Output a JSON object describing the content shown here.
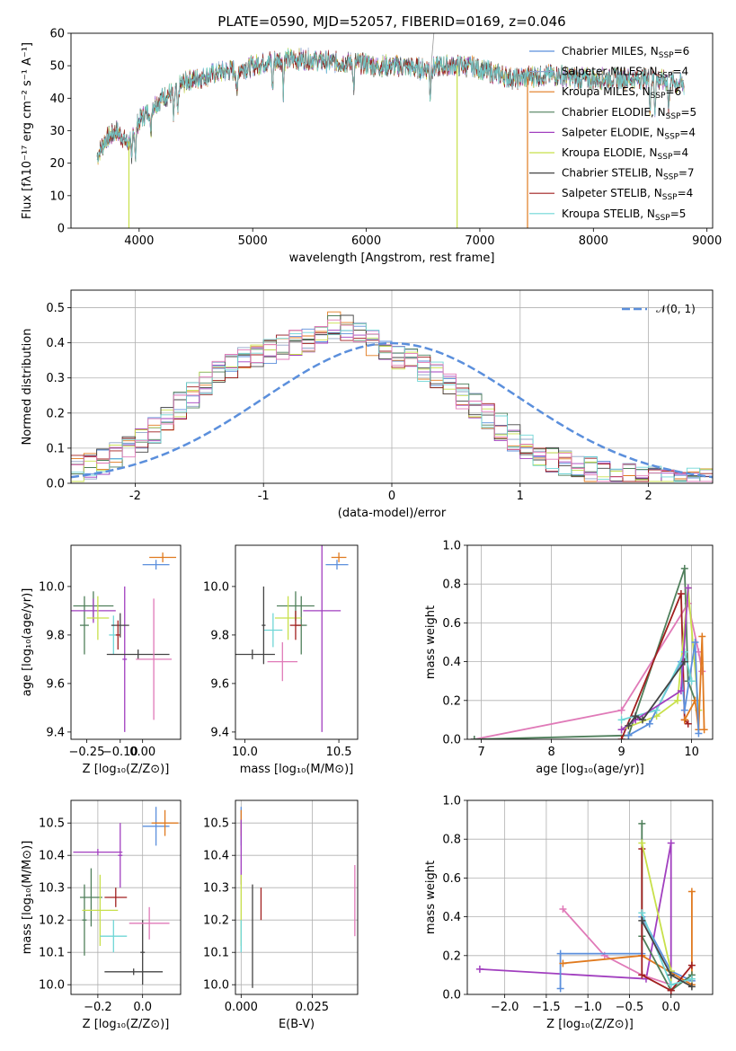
{
  "figure_title": "PLATE=0590, MJD=52057, FIBERID=0169, z=0.046",
  "colors": [
    "#5b8fdc",
    "#8fa3c7",
    "#e07a1f",
    "#4f7f5b",
    "#a13fbf",
    "#c8e04a",
    "#444444",
    "#a11f1f",
    "#6fd6d6"
  ],
  "chart_data": [
    {
      "type": "line",
      "name": "spectrum",
      "xlabel": "wavelength [Angstrom, rest frame]",
      "ylabel": "Flux [fλ10⁻¹⁷ erg cm⁻² s⁻¹ A⁻¹]",
      "xlim": [
        3400,
        9050
      ],
      "ylim": [
        0,
        60
      ],
      "xticks": [
        4000,
        5000,
        6000,
        7000,
        8000,
        9000
      ],
      "yticks": [
        0,
        10,
        20,
        30,
        40,
        50,
        60
      ],
      "continuum_x": [
        3630,
        3700,
        3800,
        3900,
        4000,
        4100,
        4200,
        4300,
        4400,
        4500,
        4700,
        4900,
        5100,
        5300,
        5500,
        5700,
        5900,
        6100,
        6300,
        6500,
        6700,
        6900,
        7100,
        7300,
        7500,
        7700,
        7900,
        8100,
        8300,
        8500,
        8700,
        8800
      ],
      "continuum_y": [
        22,
        27,
        30,
        26,
        33,
        37,
        40,
        42,
        45,
        46,
        48,
        49,
        51,
        52,
        52,
        51,
        51,
        50,
        50,
        49,
        50,
        50,
        48,
        46,
        47,
        47,
        46,
        46,
        46,
        46,
        45,
        44
      ],
      "legend": [
        {
          "label": "Chabrier MILES, N",
          "sub": "SSP",
          "n": "=6",
          "color": "#5b8fdc"
        },
        {
          "label": "Salpeter MILES, N",
          "sub": "SSP",
          "n": "=4",
          "color": "#8fa3c7"
        },
        {
          "label": "Kroupa MILES, N",
          "sub": "SSP",
          "n": "=6",
          "color": "#e07a1f"
        },
        {
          "label": "Chabrier ELODIE, N",
          "sub": "SSP",
          "n": "=5",
          "color": "#4f7f5b"
        },
        {
          "label": "Salpeter ELODIE, N",
          "sub": "SSP",
          "n": "=4",
          "color": "#a13fbf"
        },
        {
          "label": "Kroupa ELODIE, N",
          "sub": "SSP",
          "n": "=4",
          "color": "#c8e04a"
        },
        {
          "label": "Chabrier STELIB, N",
          "sub": "SSP",
          "n": "=7",
          "color": "#444444"
        },
        {
          "label": "Salpeter STELIB, N",
          "sub": "SSP",
          "n": "=4",
          "color": "#a11f1f"
        },
        {
          "label": "Kroupa STELIB, N",
          "sub": "SSP",
          "n": "=5",
          "color": "#6fd6d6"
        }
      ]
    },
    {
      "type": "histogram",
      "name": "residuals",
      "xlabel": "(data-model)/error",
      "ylabel": "Normed distribution",
      "xlim": [
        -2.5,
        2.5
      ],
      "ylim": [
        0,
        0.55
      ],
      "xticks": [
        -2,
        -1,
        0,
        1,
        2
      ],
      "yticks": [
        0.0,
        0.1,
        0.2,
        0.3,
        0.4,
        0.5
      ],
      "bin_edges_start": -2.5,
      "bin_width": 0.1,
      "reference_density": [
        0.04,
        0.05,
        0.06,
        0.08,
        0.1,
        0.12,
        0.15,
        0.18,
        0.22,
        0.25,
        0.28,
        0.31,
        0.33,
        0.35,
        0.37,
        0.38,
        0.39,
        0.4,
        0.41,
        0.43,
        0.45,
        0.44,
        0.42,
        0.4,
        0.38,
        0.36,
        0.35,
        0.33,
        0.31,
        0.28,
        0.25,
        0.22,
        0.19,
        0.16,
        0.13,
        0.11,
        0.09,
        0.07,
        0.06,
        0.05,
        0.04,
        0.03,
        0.03,
        0.02,
        0.02,
        0.01,
        0.01,
        0.01,
        0.01,
        0.01
      ],
      "gaussian_label": "𝒩(0, 1)",
      "gaussian_color": "#5b8fdc"
    },
    {
      "type": "scatter",
      "name": "age_vs_Z",
      "xlabel": "Z [log₁₀(Z/Z⊙)]",
      "ylabel": "age  [log₁₀(age/yr)]",
      "xlim": [
        -0.32,
        0.17
      ],
      "ylim": [
        9.37,
        10.17
      ],
      "xticks": [
        -0.25,
        -0.1,
        0.0
      ],
      "xtick_labels": [
        "−0.25",
        "−0.10",
        "0.00"
      ],
      "yticks": [
        9.4,
        9.6,
        9.8,
        10.0
      ],
      "points": [
        {
          "x": 0.06,
          "y": 10.09,
          "ex": 0.06,
          "ey": 0.02,
          "color": "#5b8fdc"
        },
        {
          "x": 0.09,
          "y": 10.12,
          "ex": 0.06,
          "ey": 0.02,
          "color": "#e07a1f"
        },
        {
          "x": -0.22,
          "y": 9.92,
          "ex": 0.09,
          "ey": 0.06,
          "color": "#4f7f5b"
        },
        {
          "x": -0.26,
          "y": 9.84,
          "ex": 0.02,
          "ey": 0.12,
          "color": "#4f7f5b"
        },
        {
          "x": -0.22,
          "y": 9.9,
          "ex": 0.1,
          "ey": 0.05,
          "color": "#a13fbf"
        },
        {
          "x": -0.08,
          "y": 9.7,
          "ex": 0.01,
          "ey": 0.3,
          "color": "#a13fbf"
        },
        {
          "x": -0.2,
          "y": 9.87,
          "ex": 0.05,
          "ey": 0.09,
          "color": "#c8e04a"
        },
        {
          "x": -0.13,
          "y": 9.8,
          "ex": 0.02,
          "ey": 0.08,
          "color": "#6fd6d6"
        },
        {
          "x": -0.1,
          "y": 9.84,
          "ex": 0.04,
          "ey": 0.05,
          "color": "#444444"
        },
        {
          "x": -0.02,
          "y": 9.72,
          "ex": 0.14,
          "ey": 0.02,
          "color": "#444444"
        },
        {
          "x": -0.11,
          "y": 9.8,
          "ex": 0.01,
          "ey": 0.06,
          "color": "#a11f1f"
        },
        {
          "x": 0.05,
          "y": 9.7,
          "ex": 0.08,
          "ey": 0.25,
          "color": "#e07ab8"
        }
      ]
    },
    {
      "type": "scatter",
      "name": "age_vs_mass",
      "xlabel": "mass [log₁₀(M/M⊙)]",
      "xlim": [
        9.95,
        10.6
      ],
      "ylim": [
        9.37,
        10.17
      ],
      "xticks": [
        10.0,
        10.5
      ],
      "xtick_labels": [
        "10.0",
        "10.5"
      ],
      "yticks": [
        9.4,
        9.6,
        9.8,
        10.0
      ],
      "points": [
        {
          "x": 10.49,
          "y": 10.09,
          "ex": 0.06,
          "ey": 0.02,
          "color": "#5b8fdc"
        },
        {
          "x": 10.5,
          "y": 10.12,
          "ex": 0.04,
          "ey": 0.02,
          "color": "#e07a1f"
        },
        {
          "x": 10.27,
          "y": 9.92,
          "ex": 0.1,
          "ey": 0.06,
          "color": "#4f7f5b"
        },
        {
          "x": 10.3,
          "y": 9.84,
          "ex": 0.03,
          "ey": 0.12,
          "color": "#4f7f5b"
        },
        {
          "x": 10.41,
          "y": 9.9,
          "ex": 0.1,
          "ey": 0.5,
          "color": "#a13fbf"
        },
        {
          "x": 10.23,
          "y": 9.87,
          "ex": 0.07,
          "ey": 0.09,
          "color": "#c8e04a"
        },
        {
          "x": 10.15,
          "y": 9.82,
          "ex": 0.05,
          "ey": 0.07,
          "color": "#6fd6d6"
        },
        {
          "x": 10.1,
          "y": 9.84,
          "ex": 0.01,
          "ey": 0.16,
          "color": "#444444"
        },
        {
          "x": 10.04,
          "y": 9.72,
          "ex": 0.12,
          "ey": 0.02,
          "color": "#444444"
        },
        {
          "x": 10.27,
          "y": 9.84,
          "ex": 0.03,
          "ey": 0.06,
          "color": "#a11f1f"
        },
        {
          "x": 10.2,
          "y": 9.69,
          "ex": 0.08,
          "ey": 0.08,
          "color": "#e07ab8"
        }
      ]
    },
    {
      "type": "line",
      "name": "weight_vs_age",
      "xlabel": "age  [log₁₀(age/yr)]",
      "ylabel": "mass weight",
      "xlim": [
        6.8,
        10.3
      ],
      "ylim": [
        0,
        1
      ],
      "xticks": [
        7,
        8,
        9,
        10
      ],
      "yticks": [
        0.0,
        0.2,
        0.4,
        0.6,
        0.8,
        1.0
      ],
      "series": [
        {
          "color": "#e07ab8",
          "x": [
            6.9,
            9.0,
            9.95,
            10.1,
            10.15
          ],
          "y": [
            0.0,
            0.15,
            0.7,
            0.45,
            0.35
          ]
        },
        {
          "color": "#4f7f5b",
          "x": [
            6.9,
            9.1,
            9.9,
            9.95,
            10.05
          ],
          "y": [
            0.0,
            0.02,
            0.88,
            0.3,
            0.2
          ]
        },
        {
          "color": "#a11f1f",
          "x": [
            9.0,
            9.85,
            9.9,
            9.95
          ],
          "y": [
            0.0,
            0.75,
            0.1,
            0.08
          ]
        },
        {
          "color": "#c8e04a",
          "x": [
            9.0,
            9.5,
            9.8,
            9.95,
            10.1
          ],
          "y": [
            0.05,
            0.12,
            0.2,
            0.78,
            0.15
          ]
        },
        {
          "color": "#e07a1f",
          "x": [
            9.9,
            10.05,
            10.1,
            10.15,
            10.18
          ],
          "y": [
            0.1,
            0.2,
            0.05,
            0.53,
            0.05
          ]
        },
        {
          "color": "#5b8fdc",
          "x": [
            9.1,
            9.4,
            9.85,
            9.9,
            10.05,
            10.1
          ],
          "y": [
            0.02,
            0.08,
            0.4,
            0.15,
            0.5,
            0.03
          ]
        },
        {
          "color": "#6fd6d6",
          "x": [
            9.0,
            9.5,
            9.9,
            10.0
          ],
          "y": [
            0.1,
            0.15,
            0.45,
            0.3
          ]
        },
        {
          "color": "#a13fbf",
          "x": [
            9.0,
            9.2,
            9.85,
            9.95
          ],
          "y": [
            0.05,
            0.1,
            0.25,
            0.78
          ]
        },
        {
          "color": "#444444",
          "x": [
            9.1,
            9.2,
            9.3,
            9.9
          ],
          "y": [
            0.07,
            0.12,
            0.1,
            0.4
          ]
        }
      ]
    },
    {
      "type": "scatter",
      "name": "mass_vs_Z",
      "xlabel": "Z [log₁₀(Z/Z⊙)]",
      "ylabel": "mass [log₁₀(M/M⊙)]",
      "xlim": [
        -0.32,
        0.17
      ],
      "ylim": [
        9.97,
        10.57
      ],
      "xticks": [
        -0.2,
        0.0
      ],
      "xtick_labels": [
        "−0.2",
        "0.0"
      ],
      "yticks": [
        10.0,
        10.1,
        10.2,
        10.3,
        10.4,
        10.5
      ],
      "points": [
        {
          "x": 0.06,
          "y": 10.49,
          "ex": 0.06,
          "ey": 0.06,
          "color": "#5b8fdc"
        },
        {
          "x": 0.1,
          "y": 10.5,
          "ex": 0.06,
          "ey": 0.04,
          "color": "#e07a1f"
        },
        {
          "x": -0.23,
          "y": 10.27,
          "ex": 0.05,
          "ey": 0.09,
          "color": "#4f7f5b"
        },
        {
          "x": -0.26,
          "y": 10.2,
          "ex": 0.01,
          "ey": 0.11,
          "color": "#4f7f5b"
        },
        {
          "x": -0.2,
          "y": 10.41,
          "ex": 0.11,
          "ey": 0.01,
          "color": "#a13fbf"
        },
        {
          "x": -0.1,
          "y": 10.4,
          "ex": 0.01,
          "ey": 0.1,
          "color": "#a13fbf"
        },
        {
          "x": -0.19,
          "y": 10.23,
          "ex": 0.08,
          "ey": 0.11,
          "color": "#c8e04a"
        },
        {
          "x": -0.13,
          "y": 10.15,
          "ex": 0.06,
          "ey": 0.05,
          "color": "#6fd6d6"
        },
        {
          "x": -0.04,
          "y": 10.04,
          "ex": 0.13,
          "ey": 0.01,
          "color": "#444444"
        },
        {
          "x": 0.0,
          "y": 10.1,
          "ex": 0.01,
          "ey": 0.1,
          "color": "#444444"
        },
        {
          "x": -0.12,
          "y": 10.27,
          "ex": 0.05,
          "ey": 0.03,
          "color": "#a11f1f"
        },
        {
          "x": 0.03,
          "y": 10.19,
          "ex": 0.09,
          "ey": 0.05,
          "color": "#e07ab8"
        }
      ]
    },
    {
      "type": "scatter",
      "name": "mass_vs_EBV",
      "xlabel": "E(B-V)",
      "xlim": [
        -0.002,
        0.041
      ],
      "ylim": [
        9.97,
        10.57
      ],
      "xticks": [
        0.0,
        0.025
      ],
      "xtick_labels": [
        "0.000",
        "0.025"
      ],
      "yticks": [
        10.0,
        10.1,
        10.2,
        10.3,
        10.4,
        10.5
      ],
      "points": [
        {
          "x": 0.0,
          "y": 10.49,
          "ex": 0.0,
          "ey": 0.06,
          "color": "#5b8fdc"
        },
        {
          "x": 0.0,
          "y": 10.5,
          "ex": 0.0,
          "ey": 0.04,
          "color": "#e07a1f"
        },
        {
          "x": 0.0,
          "y": 10.41,
          "ex": 0.0,
          "ey": 0.1,
          "color": "#a13fbf"
        },
        {
          "x": 0.0,
          "y": 10.23,
          "ex": 0.0,
          "ey": 0.11,
          "color": "#c8e04a"
        },
        {
          "x": 0.0,
          "y": 10.15,
          "ex": 0.0,
          "ey": 0.05,
          "color": "#6fd6d6"
        },
        {
          "x": 0.004,
          "y": 10.15,
          "ex": 0.0,
          "ey": 0.16,
          "color": "#444444"
        },
        {
          "x": 0.007,
          "y": 10.25,
          "ex": 0.0,
          "ey": 0.05,
          "color": "#a11f1f"
        },
        {
          "x": 0.04,
          "y": 10.26,
          "ex": 0.0,
          "ey": 0.11,
          "color": "#e07ab8"
        }
      ]
    },
    {
      "type": "line",
      "name": "weight_vs_Z",
      "xlabel": "Z [log₁₀(Z/Z⊙)]",
      "ylabel": "mass weight",
      "xlim": [
        -2.45,
        0.5
      ],
      "ylim": [
        0,
        1
      ],
      "xticks": [
        -2.0,
        -1.5,
        -1.0,
        -0.5,
        0.0
      ],
      "xtick_labels": [
        "−2.0",
        "−1.5",
        "−1.0",
        "−0.5",
        "0.0"
      ],
      "yticks": [
        0.0,
        0.2,
        0.4,
        0.6,
        0.8,
        1.0
      ],
      "series": [
        {
          "color": "#a13fbf",
          "x": [
            -2.3,
            -0.3,
            0.0,
            0.0
          ],
          "y": [
            0.13,
            0.08,
            0.78,
            0.02
          ]
        },
        {
          "color": "#e07ab8",
          "x": [
            -1.3,
            -0.8,
            -0.35,
            0.0
          ],
          "y": [
            0.44,
            0.2,
            0.1,
            0.05
          ]
        },
        {
          "color": "#5b8fdc",
          "x": [
            -1.33,
            -1.33,
            -0.35,
            -0.35,
            0.0,
            0.25
          ],
          "y": [
            0.03,
            0.21,
            0.21,
            0.4,
            0.12,
            0.07
          ]
        },
        {
          "color": "#e07a1f",
          "x": [
            -1.3,
            -0.35,
            0.25,
            0.25
          ],
          "y": [
            0.16,
            0.2,
            0.05,
            0.53
          ]
        },
        {
          "color": "#4f7f5b",
          "x": [
            -0.35,
            -0.35,
            0.0,
            0.25
          ],
          "y": [
            0.88,
            0.3,
            0.02,
            0.1
          ]
        },
        {
          "color": "#a11f1f",
          "x": [
            -0.35,
            -0.35,
            0.0,
            0.25
          ],
          "y": [
            0.75,
            0.1,
            0.02,
            0.15
          ]
        },
        {
          "color": "#c8e04a",
          "x": [
            -0.35,
            0.0,
            0.0
          ],
          "y": [
            0.78,
            0.12,
            0.05
          ]
        },
        {
          "color": "#6fd6d6",
          "x": [
            -0.35,
            0.0,
            0.25
          ],
          "y": [
            0.42,
            0.05,
            0.08
          ]
        },
        {
          "color": "#444444",
          "x": [
            -0.35,
            0.0,
            0.25
          ],
          "y": [
            0.38,
            0.1,
            0.04
          ]
        }
      ]
    }
  ]
}
